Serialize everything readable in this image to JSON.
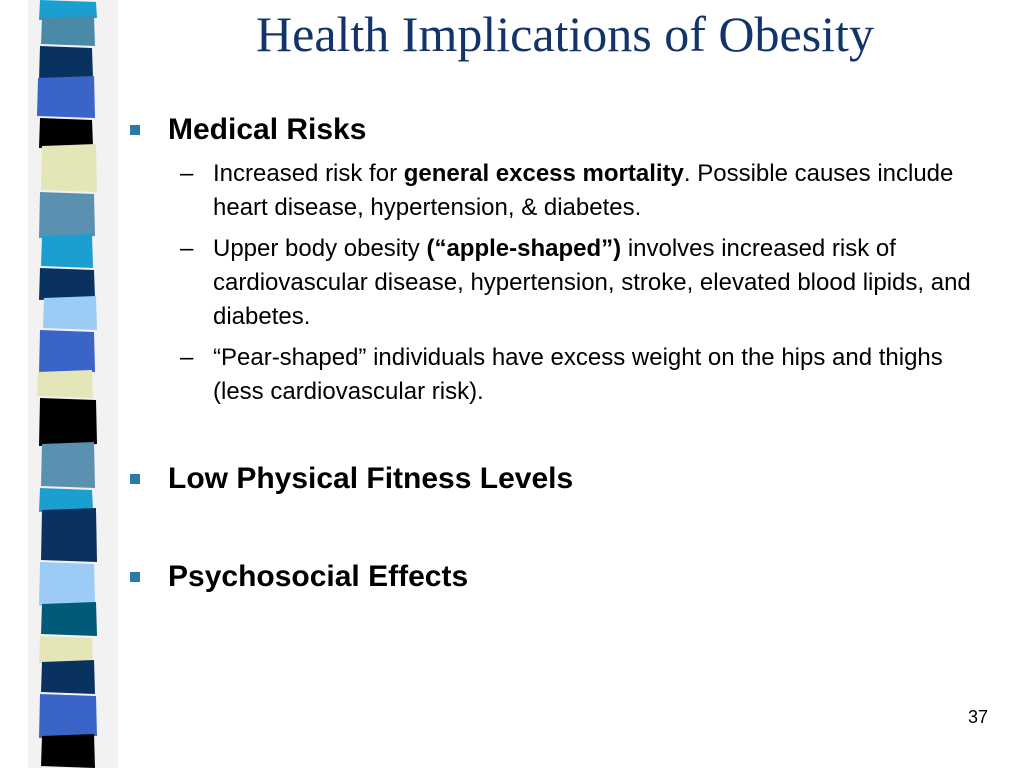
{
  "slide": {
    "title": "Health Implications of Obesity",
    "page_number": "37",
    "colors": {
      "title": "#13336b",
      "bullet_marker": "#2b7ba8",
      "stripe_palette": [
        "#4a8aa8",
        "#0a3260",
        "#1a9fd0",
        "#3a64c8",
        "#000000",
        "#e4e6b8",
        "#5a90b0",
        "#9ccbf5",
        "#005a78"
      ]
    },
    "bullets": [
      {
        "label": "Medical Risks",
        "subitems": [
          {
            "dash": "–",
            "pre": "Increased risk for ",
            "bold": "general excess mortality",
            "post": ".  Possible causes include heart disease, hypertension, & diabetes."
          },
          {
            "dash": "–",
            "pre": "Upper body obesity ",
            "bold": "(“apple-shaped”)",
            "post": " involves increased risk of cardiovascular disease, hypertension, stroke, elevated blood lipids, and diabetes."
          },
          {
            "dash": "–",
            "pre": "“Pear-shaped” individuals have excess weight on the hips and thighs (less cardiovascular risk).",
            "bold": "",
            "post": ""
          }
        ]
      },
      {
        "label": "Low Physical Fitness Levels"
      },
      {
        "label": "Psychosocial Effects"
      }
    ]
  }
}
